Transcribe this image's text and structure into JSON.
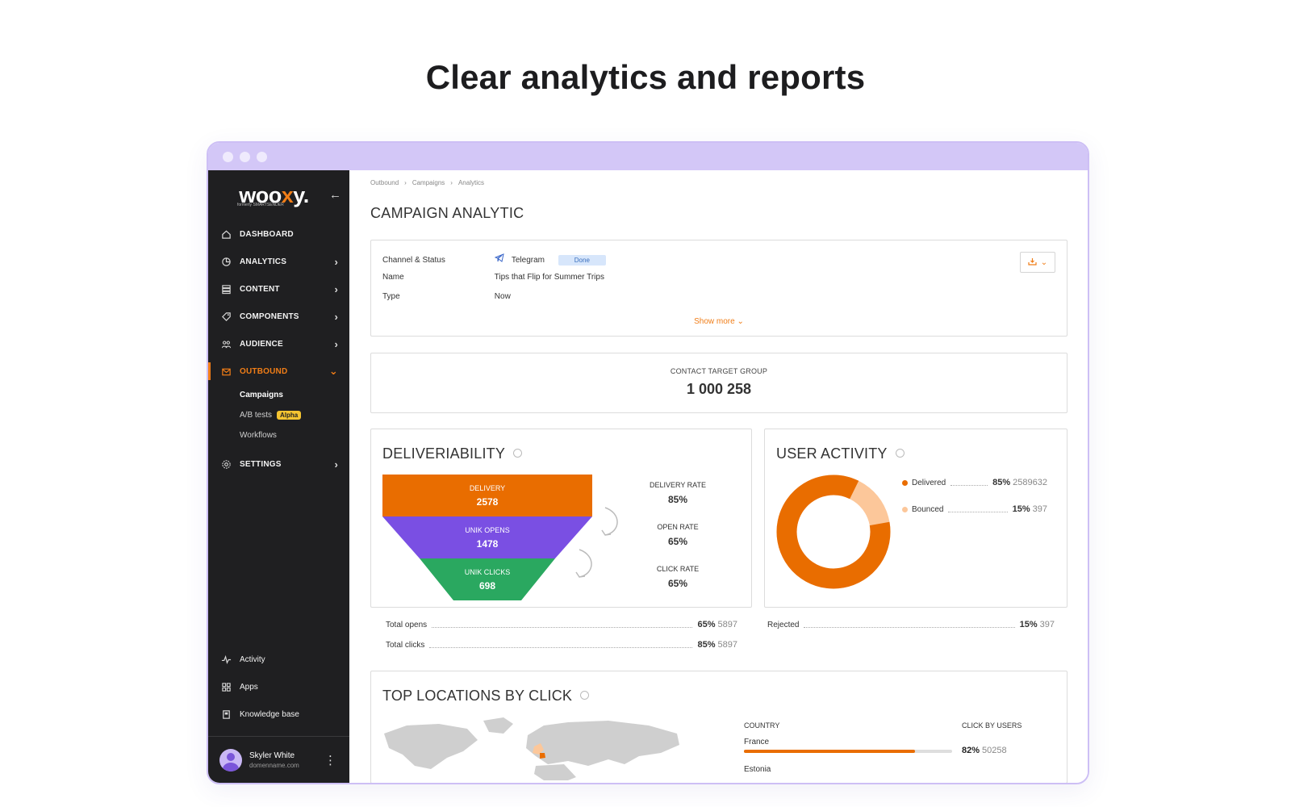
{
  "hero": {
    "title": "Clear analytics and reports"
  },
  "brand": {
    "logo_pre": "woo",
    "logo_x": "x",
    "logo_post": "y.",
    "subtitle": "formerly SMARTSENDER",
    "accent": "#f07d17"
  },
  "sidebar": {
    "items": [
      {
        "label": "DASHBOARD",
        "icon": "home-icon",
        "chevron": false
      },
      {
        "label": "ANALYTICS",
        "icon": "pie-chart-icon",
        "chevron": true
      },
      {
        "label": "CONTENT",
        "icon": "list-icon",
        "chevron": true
      },
      {
        "label": "COMPONENTS",
        "icon": "tag-icon",
        "chevron": true
      },
      {
        "label": "AUDIENCE",
        "icon": "people-icon",
        "chevron": true
      },
      {
        "label": "OUTBOUND",
        "icon": "envelope-icon",
        "chevron": true,
        "active": true
      },
      {
        "label": "SETTINGS",
        "icon": "gear-icon",
        "chevron": true
      }
    ],
    "outbound_sub": [
      {
        "label": "Campaigns"
      },
      {
        "label": "A/B tests",
        "badge": "Alpha"
      },
      {
        "label": "Workflows"
      }
    ],
    "bottom": [
      {
        "label": "Activity",
        "icon": "activity-icon"
      },
      {
        "label": "Apps",
        "icon": "apps-grid-icon"
      },
      {
        "label": "Knowledge base",
        "icon": "book-icon"
      }
    ],
    "user": {
      "name": "Skyler White",
      "email": "domenname.com"
    }
  },
  "breadcrumb": [
    "Outbound",
    "Campaigns",
    "Analytics"
  ],
  "page": {
    "title": "CAMPAIGN ANALYTIC"
  },
  "info": {
    "channel_label": "Channel & Status",
    "channel_value": "Telegram",
    "status": "Done",
    "name_label": "Name",
    "name_value": "Tips that Flip for Summer Trips",
    "type_label": "Type",
    "type_value": "Now",
    "show_more": "Show more"
  },
  "target": {
    "label": "CONTACT TARGET GROUP",
    "value": "1 000 258"
  },
  "deliverability": {
    "title": "DELIVERIABILITY",
    "funnel": [
      {
        "label": "DELIVERY",
        "value": "2578",
        "color": "#e96d00"
      },
      {
        "label": "UNIK OPENS",
        "value": "1478",
        "color": "#7a4fe3"
      },
      {
        "label": "UNIK CLICKS",
        "value": "698",
        "color": "#2aa860"
      }
    ],
    "rates": [
      {
        "label": "DELIVERY RATE",
        "value": "85%"
      },
      {
        "label": "OPEN RATE",
        "value": "65%"
      },
      {
        "label": "CLICK RATE",
        "value": "65%"
      }
    ],
    "totals": [
      {
        "label": "Total opens",
        "pct": "65%",
        "count": "5897"
      },
      {
        "label": "Total clicks",
        "pct": "85%",
        "count": "5897"
      }
    ]
  },
  "user_activity": {
    "title": "USER ACTIVITY",
    "legend": [
      {
        "label": "Delivered",
        "pct": "85%",
        "count": "2589632",
        "color": "#e96d00"
      },
      {
        "label": "Bounced",
        "pct": "15%",
        "count": "397",
        "color": "#fcc79a"
      }
    ],
    "donut_share": [
      0.85,
      0.15
    ],
    "rejected": {
      "label": "Rejected",
      "pct": "15%",
      "count": "397"
    }
  },
  "locations": {
    "title": "TOP LOCATIONS BY CLICK",
    "col_country": "COUNTRY",
    "col_clicks": "CLICK BY USERS",
    "rows": [
      {
        "country": "France",
        "pct": "82%",
        "count": "50258",
        "share": 0.82
      },
      {
        "country": "Estonia"
      }
    ]
  }
}
